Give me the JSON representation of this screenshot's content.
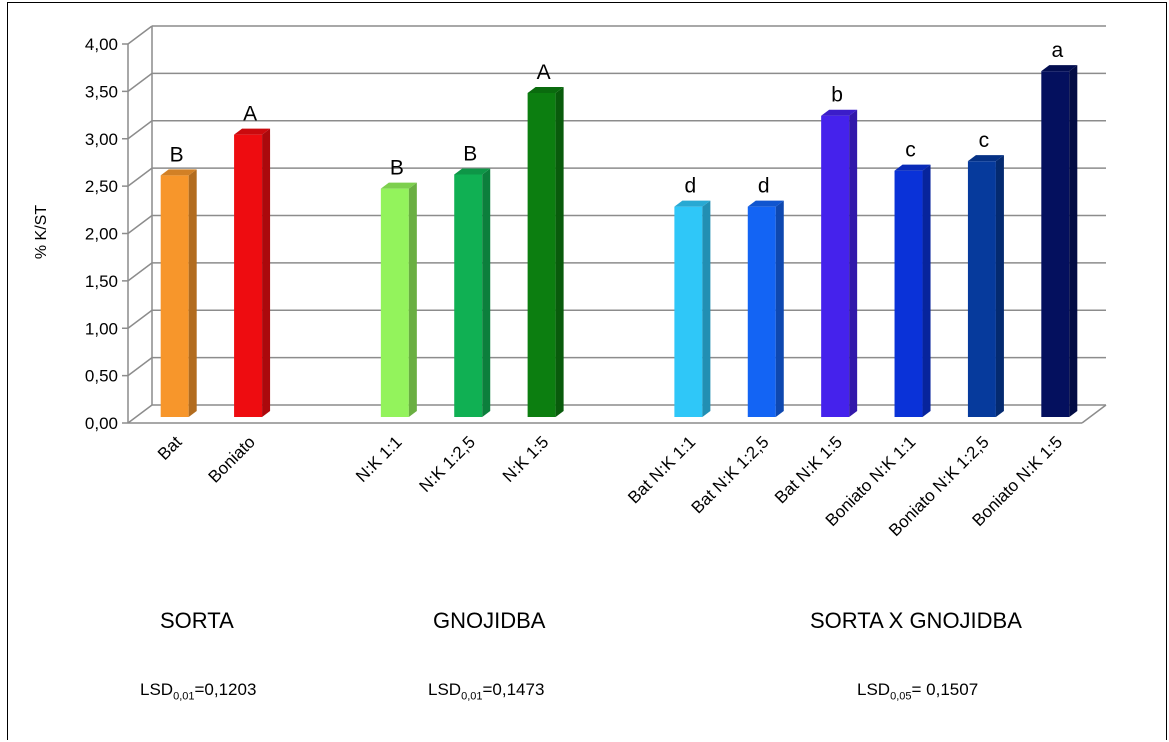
{
  "chart_data": {
    "type": "bar",
    "ylabel": "% K/ST",
    "ylim": [
      0,
      4
    ],
    "yticks": [
      "0,00",
      "0,50",
      "1,00",
      "1,50",
      "2,00",
      "2,50",
      "3,00",
      "3,50",
      "4,00"
    ],
    "grid": true,
    "categories": [
      "Bat",
      "Boniato",
      "N:K 1:1",
      "N:K 1:2,5",
      "N:K 1:5",
      "Bat N:K 1:1",
      "Bat N:K 1:2,5",
      "Bat N:K 1:5",
      "Boniato N:K 1:1",
      "Boniato N:K 1:2,5",
      "Boniato N:K 1:5"
    ],
    "values": [
      2.55,
      2.98,
      2.41,
      2.56,
      3.42,
      2.22,
      2.22,
      3.18,
      2.6,
      2.7,
      3.65
    ],
    "letters": [
      "B",
      "A",
      "B",
      "B",
      "A",
      "d",
      "d",
      "b",
      "c",
      "c",
      "a"
    ],
    "colors": [
      "#F7962B",
      "#EE0C10",
      "#93F35C",
      "#10B053",
      "#0C7E10",
      "#2FC7F8",
      "#1364F4",
      "#4522EC",
      "#0A32D8",
      "#063A9C",
      "#04105E"
    ],
    "groups": [
      {
        "title": "SORTA",
        "lsd_prefix": "LSD",
        "lsd_sub": "0,01",
        "lsd_value": "=0,1203"
      },
      {
        "title": "GNOJIDBA",
        "lsd_prefix": "LSD",
        "lsd_sub": "0,01",
        "lsd_value": "=0,1473"
      },
      {
        "title": "SORTA X GNOJIDBA",
        "lsd_prefix": "LSD",
        "lsd_sub": "0,05",
        "lsd_value": "= 0,1507"
      }
    ]
  }
}
